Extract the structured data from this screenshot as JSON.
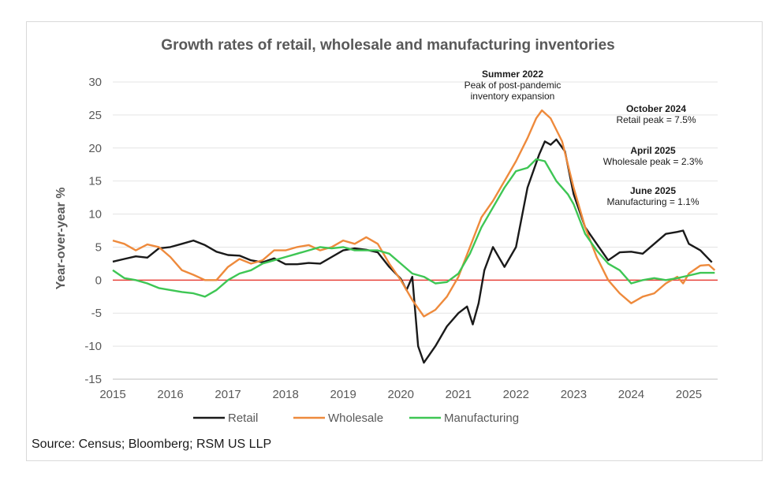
{
  "chart_data": {
    "type": "line",
    "title": "Growth rates of retail, wholesale and manufacturing inventories",
    "ylabel": "Year-over-year %",
    "xlabel": "",
    "ylim": [
      -15,
      30
    ],
    "yticks": [
      30,
      25,
      20,
      15,
      10,
      5,
      0,
      -5,
      -10,
      -15
    ],
    "xlim": [
      2015,
      2025.5
    ],
    "xticks": [
      "2015",
      "2016",
      "2017",
      "2018",
      "2019",
      "2020",
      "2021",
      "2022",
      "2023",
      "2024",
      "2025"
    ],
    "zero_line_color": "#e8423a",
    "series": [
      {
        "name": "Retail",
        "color": "#1a1a1a",
        "points": [
          [
            2015,
            2.8
          ],
          [
            2015.2,
            3.2
          ],
          [
            2015.4,
            3.6
          ],
          [
            2015.6,
            3.4
          ],
          [
            2015.8,
            4.8
          ],
          [
            2016,
            5.0
          ],
          [
            2016.2,
            5.5
          ],
          [
            2016.4,
            6.0
          ],
          [
            2016.6,
            5.3
          ],
          [
            2016.8,
            4.3
          ],
          [
            2017,
            3.8
          ],
          [
            2017.2,
            3.7
          ],
          [
            2017.4,
            3.0
          ],
          [
            2017.6,
            2.7
          ],
          [
            2017.8,
            3.3
          ],
          [
            2018,
            2.4
          ],
          [
            2018.2,
            2.4
          ],
          [
            2018.4,
            2.6
          ],
          [
            2018.6,
            2.5
          ],
          [
            2018.8,
            3.5
          ],
          [
            2019,
            4.5
          ],
          [
            2019.2,
            4.8
          ],
          [
            2019.4,
            4.6
          ],
          [
            2019.6,
            4.2
          ],
          [
            2019.8,
            2.0
          ],
          [
            2020,
            0.2
          ],
          [
            2020.1,
            -1.5
          ],
          [
            2020.2,
            0.5
          ],
          [
            2020.3,
            -10.0
          ],
          [
            2020.4,
            -12.5
          ],
          [
            2020.6,
            -10.0
          ],
          [
            2020.8,
            -7.0
          ],
          [
            2021,
            -5.0
          ],
          [
            2021.15,
            -4.0
          ],
          [
            2021.25,
            -6.7
          ],
          [
            2021.35,
            -3.5
          ],
          [
            2021.45,
            1.5
          ],
          [
            2021.6,
            5.0
          ],
          [
            2021.8,
            2.0
          ],
          [
            2022,
            5.0
          ],
          [
            2022.2,
            14.0
          ],
          [
            2022.4,
            19.0
          ],
          [
            2022.5,
            21.0
          ],
          [
            2022.6,
            20.5
          ],
          [
            2022.7,
            21.3
          ],
          [
            2022.85,
            19.5
          ],
          [
            2023,
            13.0
          ],
          [
            2023.2,
            8.0
          ],
          [
            2023.4,
            5.5
          ],
          [
            2023.6,
            3.0
          ],
          [
            2023.8,
            4.2
          ],
          [
            2024,
            4.3
          ],
          [
            2024.2,
            4.0
          ],
          [
            2024.4,
            5.5
          ],
          [
            2024.6,
            7.0
          ],
          [
            2024.8,
            7.3
          ],
          [
            2024.9,
            7.5
          ],
          [
            2025,
            5.5
          ],
          [
            2025.2,
            4.5
          ],
          [
            2025.4,
            2.7
          ]
        ]
      },
      {
        "name": "Wholesale",
        "color": "#ee8a3c",
        "points": [
          [
            2015,
            6.0
          ],
          [
            2015.2,
            5.5
          ],
          [
            2015.4,
            4.5
          ],
          [
            2015.6,
            5.4
          ],
          [
            2015.8,
            5.0
          ],
          [
            2016,
            3.5
          ],
          [
            2016.2,
            1.5
          ],
          [
            2016.4,
            0.8
          ],
          [
            2016.6,
            0.0
          ],
          [
            2016.8,
            0.0
          ],
          [
            2017,
            2.0
          ],
          [
            2017.2,
            3.2
          ],
          [
            2017.4,
            2.5
          ],
          [
            2017.6,
            3.0
          ],
          [
            2017.8,
            4.5
          ],
          [
            2018,
            4.5
          ],
          [
            2018.2,
            5.0
          ],
          [
            2018.4,
            5.3
          ],
          [
            2018.6,
            4.5
          ],
          [
            2018.8,
            5.0
          ],
          [
            2019,
            6.0
          ],
          [
            2019.2,
            5.5
          ],
          [
            2019.4,
            6.5
          ],
          [
            2019.6,
            5.5
          ],
          [
            2019.8,
            2.5
          ],
          [
            2020,
            0.0
          ],
          [
            2020.2,
            -3.0
          ],
          [
            2020.4,
            -5.5
          ],
          [
            2020.6,
            -4.5
          ],
          [
            2020.8,
            -2.5
          ],
          [
            2021,
            0.5
          ],
          [
            2021.2,
            5.0
          ],
          [
            2021.4,
            9.5
          ],
          [
            2021.6,
            12.0
          ],
          [
            2021.8,
            15.0
          ],
          [
            2022,
            18.0
          ],
          [
            2022.2,
            21.5
          ],
          [
            2022.35,
            24.5
          ],
          [
            2022.45,
            25.7
          ],
          [
            2022.6,
            24.5
          ],
          [
            2022.8,
            21.0
          ],
          [
            2023,
            14.0
          ],
          [
            2023.2,
            8.0
          ],
          [
            2023.4,
            3.5
          ],
          [
            2023.6,
            0.0
          ],
          [
            2023.8,
            -2.0
          ],
          [
            2024,
            -3.5
          ],
          [
            2024.2,
            -2.5
          ],
          [
            2024.4,
            -2.0
          ],
          [
            2024.6,
            -0.5
          ],
          [
            2024.8,
            0.5
          ],
          [
            2024.9,
            -0.5
          ],
          [
            2025,
            1.0
          ],
          [
            2025.2,
            2.2
          ],
          [
            2025.35,
            2.3
          ],
          [
            2025.45,
            1.5
          ]
        ]
      },
      {
        "name": "Manufacturing",
        "color": "#3ec654",
        "points": [
          [
            2015,
            1.5
          ],
          [
            2015.2,
            0.3
          ],
          [
            2015.4,
            0.0
          ],
          [
            2015.6,
            -0.5
          ],
          [
            2015.8,
            -1.2
          ],
          [
            2016,
            -1.5
          ],
          [
            2016.2,
            -1.8
          ],
          [
            2016.4,
            -2.0
          ],
          [
            2016.6,
            -2.5
          ],
          [
            2016.8,
            -1.5
          ],
          [
            2017,
            0.0
          ],
          [
            2017.2,
            1.0
          ],
          [
            2017.4,
            1.5
          ],
          [
            2017.6,
            2.5
          ],
          [
            2017.8,
            3.0
          ],
          [
            2018,
            3.5
          ],
          [
            2018.2,
            4.0
          ],
          [
            2018.4,
            4.5
          ],
          [
            2018.6,
            5.0
          ],
          [
            2018.8,
            4.8
          ],
          [
            2019,
            5.0
          ],
          [
            2019.2,
            4.5
          ],
          [
            2019.4,
            4.5
          ],
          [
            2019.6,
            4.5
          ],
          [
            2019.8,
            4.0
          ],
          [
            2020,
            2.5
          ],
          [
            2020.2,
            1.0
          ],
          [
            2020.4,
            0.5
          ],
          [
            2020.6,
            -0.5
          ],
          [
            2020.8,
            -0.3
          ],
          [
            2021,
            1.0
          ],
          [
            2021.2,
            4.0
          ],
          [
            2021.4,
            8.0
          ],
          [
            2021.6,
            11.0
          ],
          [
            2021.8,
            14.0
          ],
          [
            2022,
            16.5
          ],
          [
            2022.2,
            17.0
          ],
          [
            2022.35,
            18.3
          ],
          [
            2022.5,
            18.0
          ],
          [
            2022.7,
            15.0
          ],
          [
            2022.9,
            13.0
          ],
          [
            2023,
            11.5
          ],
          [
            2023.2,
            7.0
          ],
          [
            2023.4,
            4.5
          ],
          [
            2023.6,
            2.5
          ],
          [
            2023.8,
            1.5
          ],
          [
            2024,
            -0.5
          ],
          [
            2024.2,
            0.0
          ],
          [
            2024.4,
            0.3
          ],
          [
            2024.6,
            0.0
          ],
          [
            2024.8,
            0.3
          ],
          [
            2025,
            0.7
          ],
          [
            2025.2,
            1.1
          ],
          [
            2025.45,
            1.1
          ]
        ]
      }
    ],
    "annotations": [
      {
        "bold": "Summer 2022",
        "lines": [
          "Peak of post-pandemic",
          "inventory expansion"
        ]
      },
      {
        "bold": "October 2024",
        "lines": [
          "Retail peak = 7.5%"
        ]
      },
      {
        "bold": "April 2025",
        "lines": [
          "Wholesale peak = 2.3%"
        ]
      },
      {
        "bold": "June 2025",
        "lines": [
          "Manufacturing = 1.1%"
        ]
      }
    ],
    "legend": [
      "Retail",
      "Wholesale",
      "Manufacturing"
    ],
    "legend_position": "bottom"
  },
  "source": "Source: Census; Bloomberg; RSM US LLP"
}
